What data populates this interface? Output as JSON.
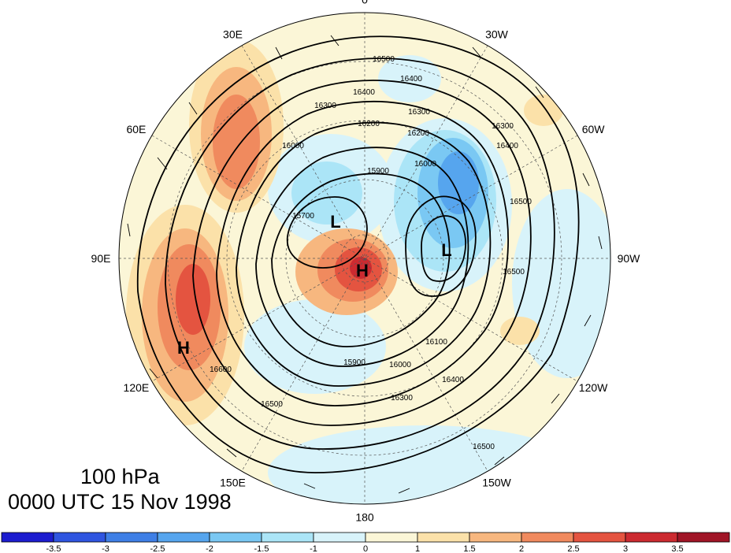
{
  "plot": {
    "level": "100 hPa",
    "time": "0000 UTC 15 Nov 1998"
  },
  "longitude_labels": [
    {
      "text": "0",
      "deg": 0
    },
    {
      "text": "30W",
      "deg": -30
    },
    {
      "text": "60W",
      "deg": -60
    },
    {
      "text": "90W",
      "deg": -90
    },
    {
      "text": "120W",
      "deg": -120
    },
    {
      "text": "150W",
      "deg": -150
    },
    {
      "text": "180",
      "deg": 180
    },
    {
      "text": "150E",
      "deg": 150
    },
    {
      "text": "120E",
      "deg": 120
    },
    {
      "text": "90E",
      "deg": 90
    },
    {
      "text": "60E",
      "deg": 60
    },
    {
      "text": "30E",
      "deg": 30
    }
  ],
  "pressure_systems": [
    {
      "label": "H",
      "color": "#000000"
    },
    {
      "label": "L",
      "color": "#000000"
    },
    {
      "label": "L",
      "color": "#000000"
    },
    {
      "label": "H",
      "color": "#000000"
    }
  ],
  "contour_labels": [
    "16500",
    "16400",
    "16400",
    "16300",
    "16200",
    "16000",
    "15900",
    "15700",
    "16300",
    "16200",
    "16000",
    "16400",
    "16300",
    "15900",
    "16000",
    "16100",
    "16300",
    "16400",
    "16500",
    "16500",
    "16500",
    "16600",
    "16500"
  ],
  "colorbar": {
    "labels": [
      "-3.5",
      "-3",
      "-2.5",
      "-2",
      "-1.5",
      "-1",
      "0",
      "1",
      "1.5",
      "2",
      "2.5",
      "3",
      "3.5"
    ],
    "colors": [
      "#1c1ccf",
      "#2f55e0",
      "#3e7fe6",
      "#56a5ee",
      "#7ac8f3",
      "#abe5f7",
      "#d8f3fa",
      "#fbf6d7",
      "#fbe1a9",
      "#f7b77f",
      "#f08a5e",
      "#e45440",
      "#cc2a30",
      "#a01526"
    ]
  }
}
